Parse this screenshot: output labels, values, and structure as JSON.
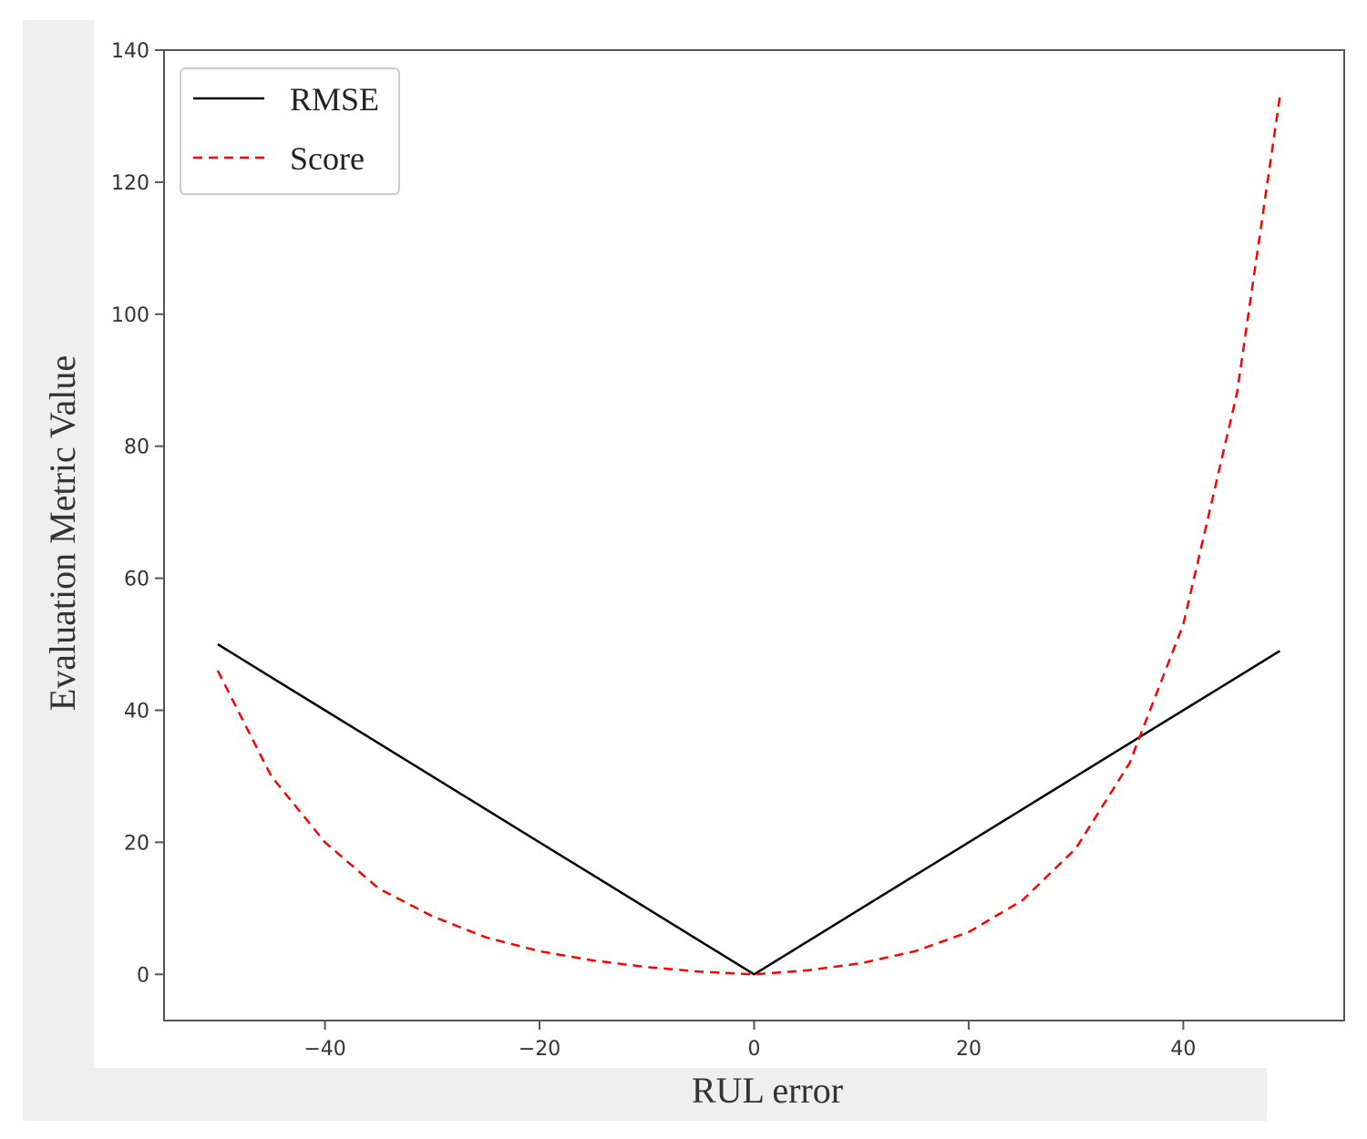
{
  "chart_data": {
    "type": "line",
    "xlabel": "RUL error",
    "ylabel": "Evaluation Metric Value",
    "xlim": [
      -55,
      55
    ],
    "ylim": [
      -7,
      140
    ],
    "xticks": [
      -40,
      -20,
      0,
      20,
      40
    ],
    "xtick_labels": [
      "−40",
      "−20",
      "0",
      "20",
      "40"
    ],
    "yticks": [
      0,
      20,
      40,
      60,
      80,
      100,
      120,
      140
    ],
    "ytick_labels": [
      "0",
      "20",
      "40",
      "60",
      "80",
      "100",
      "120",
      "140"
    ],
    "grid": false,
    "legend_position": "top-left",
    "x": [
      -50,
      -45,
      -40,
      -35,
      -30,
      -25,
      -20,
      -15,
      -10,
      -5,
      0,
      5,
      10,
      15,
      20,
      25,
      30,
      35,
      40,
      45,
      49
    ],
    "series": [
      {
        "name": "RMSE",
        "color": "#000000",
        "style": "solid",
        "values": [
          50,
          45,
          40,
          35,
          30,
          25,
          20,
          15,
          10,
          5,
          0,
          5,
          10,
          15,
          20,
          25,
          30,
          35,
          40,
          45,
          49
        ]
      },
      {
        "name": "Score",
        "color": "#ff0000",
        "style": "dashed",
        "values": [
          46,
          30,
          20,
          13,
          8.8,
          5.6,
          3.5,
          2.1,
          1.1,
          0.4,
          0,
          0.6,
          1.7,
          3.5,
          6.4,
          11.2,
          19.1,
          32,
          53,
          88,
          133
        ]
      }
    ]
  }
}
